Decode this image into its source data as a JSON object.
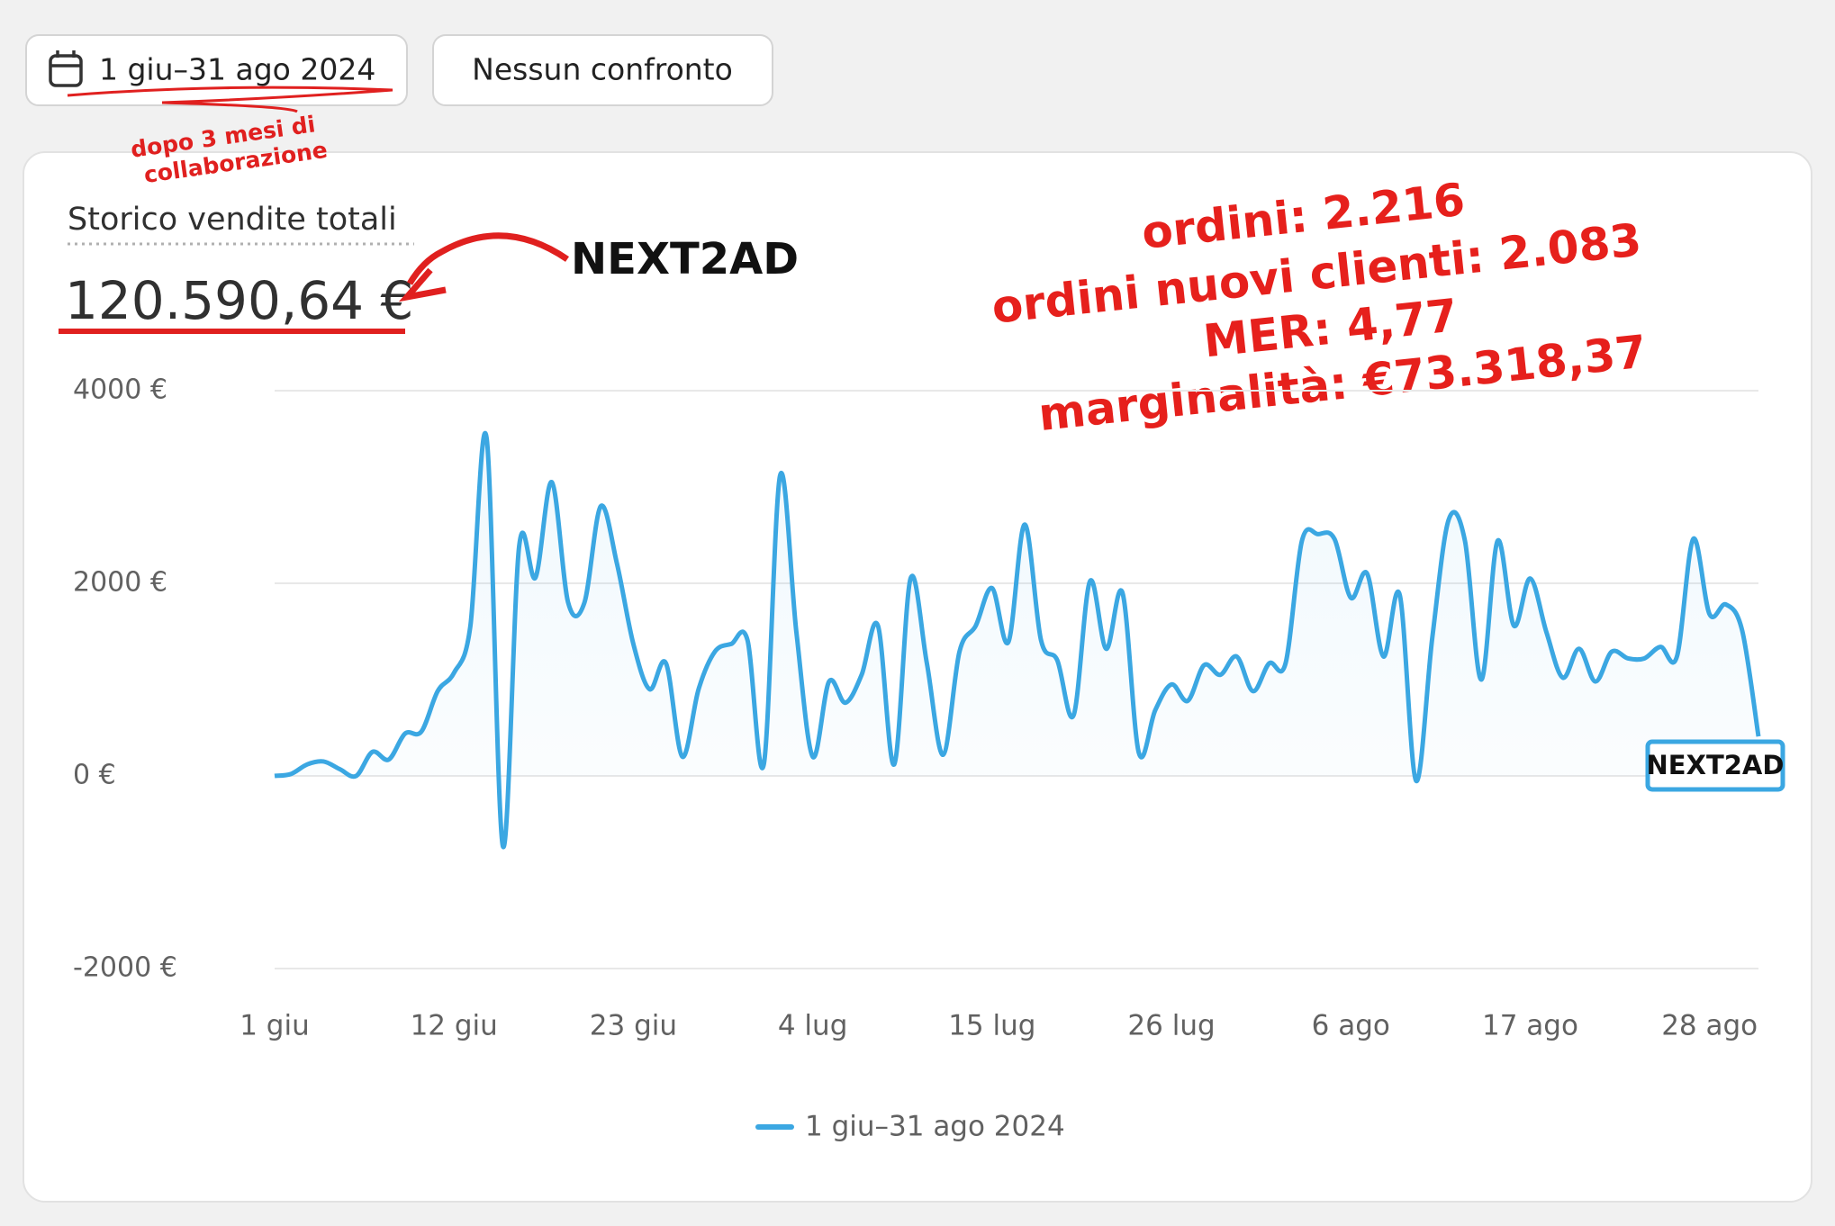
{
  "toolbar": {
    "date_range": "1 giu–31 ago 2024",
    "comparison": "Nessun confronto"
  },
  "note": [
    "dopo 3 mesi di",
    "collaborazione"
  ],
  "logo": "NEXT2AD",
  "annotations": [
    "ordini: 2.216",
    "ordini nuovi clienti: 2.083",
    "MER: 4,77",
    "marginalità: €73.318,37"
  ],
  "chart_data": {
    "type": "line",
    "title": "Storico vendite totali",
    "total": "120.590,64 €",
    "categories": [
      "1 giu",
      null,
      null,
      null,
      null,
      null,
      null,
      null,
      null,
      null,
      null,
      "12 giu",
      null,
      null,
      null,
      null,
      null,
      null,
      null,
      null,
      null,
      null,
      "23 giu",
      null,
      null,
      null,
      null,
      null,
      null,
      null,
      null,
      null,
      null,
      "4 lug",
      null,
      null,
      null,
      null,
      null,
      null,
      null,
      null,
      null,
      null,
      "15 lug",
      null,
      null,
      null,
      null,
      null,
      null,
      null,
      null,
      null,
      null,
      "26 lug",
      null,
      null,
      null,
      null,
      null,
      null,
      null,
      null,
      null,
      null,
      "6 ago",
      null,
      null,
      null,
      null,
      null,
      null,
      null,
      null,
      null,
      null,
      "17 ago",
      null,
      null,
      null,
      null,
      null,
      null,
      null,
      null,
      null,
      null,
      "28 ago",
      null,
      null,
      null
    ],
    "series": [
      {
        "name": "1 giu–31 ago 2024",
        "color": "#3ba7e2",
        "values": [
          0,
          20,
          120,
          150,
          70,
          0,
          250,
          170,
          440,
          460,
          880,
          1070,
          1550,
          3510,
          -730,
          2390,
          2060,
          3050,
          1800,
          1800,
          2800,
          2200,
          1370,
          900,
          1170,
          200,
          900,
          1290,
          1370,
          1410,
          120,
          3120,
          1490,
          200,
          980,
          760,
          1050,
          1560,
          120,
          2050,
          1170,
          220,
          1290,
          1560,
          1950,
          1390,
          2610,
          1410,
          1200,
          630,
          2020,
          1320,
          1900,
          240,
          680,
          950,
          780,
          1150,
          1050,
          1240,
          880,
          1170,
          1170,
          2440,
          2510,
          2460,
          1850,
          2100,
          1240,
          1880,
          -50,
          1440,
          2660,
          2440,
          1000,
          2440,
          1560,
          2050,
          1490,
          1020,
          1320,
          980,
          1290,
          1220,
          1220,
          1340,
          1240,
          2460,
          1680,
          1780,
          1510,
          410
        ]
      }
    ],
    "ylim": [
      -2000,
      4000
    ],
    "yticks": [
      {
        "value": -2000,
        "label": "-2000 €"
      },
      {
        "value": 0,
        "label": "0 €"
      },
      {
        "value": 2000,
        "label": "2000 €"
      },
      {
        "value": 4000,
        "label": "4000 €"
      }
    ],
    "grid": true
  }
}
